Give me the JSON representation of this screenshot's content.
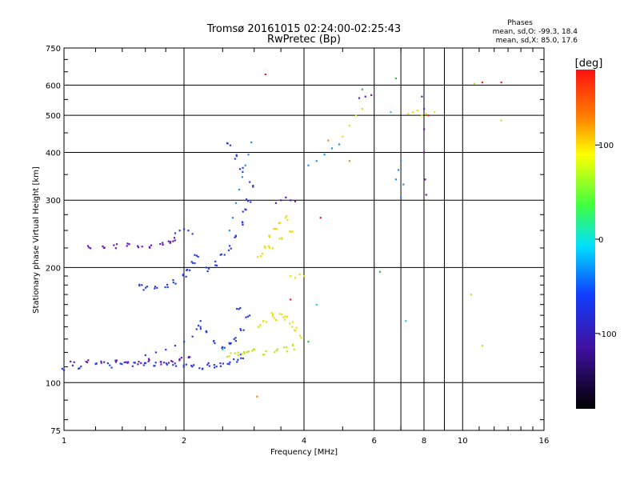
{
  "chart_data": {
    "type": "scatter",
    "title": "Tromsø 20161015 02:24:00-02:25:43",
    "subtitle": "RwPretec (Bp)",
    "xlabel": "Frequency [MHz]",
    "ylabel": "Stationary phase Virtual Height [km]",
    "x_scale": "log",
    "y_scale": "log",
    "xlim": [
      1,
      16
    ],
    "ylim": [
      75,
      750
    ],
    "x_ticks": [
      1,
      2,
      4,
      6,
      8,
      10,
      16
    ],
    "y_ticks": [
      75,
      100,
      200,
      300,
      400,
      500,
      600,
      750
    ],
    "grid": true,
    "legend": {
      "position": "top-right",
      "title": "Phases",
      "lines": [
        "mean, sd,O: -99.3, 18.4",
        "mean, sd,X:  85.0, 17.6"
      ]
    },
    "colorbar": {
      "label": "[deg]",
      "ticks": [
        100,
        0,
        -100
      ],
      "range": [
        -180,
        180
      ]
    },
    "colors": {
      "purple": "#6a1bb8",
      "blue": "#2a3fe0",
      "lightblue": "#1f8ff0",
      "cyan": "#22d0e0",
      "green": "#30c040",
      "yellowgreen": "#c8e020",
      "yellow": "#e8e010",
      "orange": "#f08a10",
      "red": "#e82020"
    },
    "clusters": [
      {
        "color": "blue",
        "points": [
          [
            1.0,
            108
          ],
          [
            1.1,
            110
          ],
          [
            1.2,
            111
          ],
          [
            1.3,
            111
          ],
          [
            1.4,
            112
          ],
          [
            1.5,
            112
          ],
          [
            1.6,
            112
          ],
          [
            1.7,
            112
          ],
          [
            1.8,
            112
          ],
          [
            1.9,
            111
          ],
          [
            2.0,
            111
          ],
          [
            2.1,
            110
          ],
          [
            2.2,
            110
          ],
          [
            2.3,
            111
          ],
          [
            2.4,
            111
          ],
          [
            2.5,
            112
          ],
          [
            2.6,
            113
          ],
          [
            2.7,
            114
          ],
          [
            2.8,
            117
          ]
        ]
      },
      {
        "color": "purple",
        "points": [
          [
            1.05,
            112
          ],
          [
            1.15,
            113
          ],
          [
            1.25,
            112
          ],
          [
            1.35,
            113
          ],
          [
            1.45,
            114
          ],
          [
            1.55,
            113
          ],
          [
            1.65,
            114
          ],
          [
            1.75,
            113
          ],
          [
            1.85,
            114
          ],
          [
            1.95,
            116
          ],
          [
            2.05,
            118
          ]
        ]
      },
      {
        "color": "blue",
        "points": [
          [
            1.6,
            118
          ],
          [
            1.7,
            120
          ],
          [
            1.8,
            122
          ],
          [
            1.9,
            125
          ],
          [
            2.0,
            128
          ],
          [
            2.1,
            132
          ],
          [
            2.15,
            138
          ],
          [
            2.2,
            145
          ]
        ]
      },
      {
        "color": "purple",
        "points": [
          [
            1.15,
            225
          ],
          [
            1.25,
            227
          ],
          [
            1.35,
            228
          ],
          [
            1.45,
            228
          ],
          [
            1.55,
            227
          ],
          [
            1.65,
            228
          ],
          [
            1.75,
            230
          ],
          [
            1.85,
            232
          ],
          [
            1.9,
            236
          ]
        ]
      },
      {
        "color": "blue",
        "points": [
          [
            1.9,
            246
          ],
          [
            1.95,
            250
          ],
          [
            2.0,
            252
          ],
          [
            2.05,
            250
          ],
          [
            2.1,
            245
          ]
        ]
      },
      {
        "color": "blue",
        "points": [
          [
            1.55,
            178
          ],
          [
            1.6,
            176
          ],
          [
            1.7,
            177
          ],
          [
            1.8,
            180
          ],
          [
            1.9,
            184
          ],
          [
            2.0,
            190
          ],
          [
            2.05,
            198
          ],
          [
            2.1,
            206
          ],
          [
            2.15,
            215
          ]
        ]
      },
      {
        "color": "blue",
        "points": [
          [
            2.3,
            198
          ],
          [
            2.4,
            205
          ],
          [
            2.5,
            215
          ],
          [
            2.6,
            225
          ],
          [
            2.7,
            240
          ],
          [
            2.8,
            260
          ],
          [
            2.85,
            280
          ],
          [
            2.9,
            300
          ],
          [
            2.95,
            330
          ],
          [
            2.8,
            360
          ],
          [
            2.7,
            390
          ],
          [
            2.6,
            420
          ]
        ]
      },
      {
        "color": "lightblue",
        "points": [
          [
            2.6,
            250
          ],
          [
            2.65,
            270
          ],
          [
            2.7,
            295
          ],
          [
            2.75,
            320
          ],
          [
            2.8,
            345
          ],
          [
            2.85,
            370
          ],
          [
            2.9,
            395
          ],
          [
            2.95,
            425
          ]
        ]
      },
      {
        "color": "blue",
        "points": [
          [
            2.2,
            140
          ],
          [
            2.3,
            135
          ],
          [
            2.4,
            128
          ],
          [
            2.5,
            124
          ],
          [
            2.6,
            126
          ],
          [
            2.7,
            130
          ],
          [
            2.8,
            138
          ],
          [
            2.9,
            148
          ],
          [
            2.75,
            156
          ]
        ]
      },
      {
        "color": "yellowgreen",
        "points": [
          [
            2.6,
            118
          ],
          [
            2.7,
            119
          ],
          [
            2.8,
            120
          ],
          [
            2.9,
            121
          ],
          [
            3.0,
            121
          ],
          [
            3.2,
            120
          ],
          [
            3.4,
            121
          ],
          [
            3.6,
            122
          ],
          [
            3.8,
            124
          ]
        ]
      },
      {
        "color": "yellow",
        "points": [
          [
            3.1,
            140
          ],
          [
            3.2,
            145
          ],
          [
            3.3,
            150
          ],
          [
            3.4,
            147
          ],
          [
            3.5,
            150
          ],
          [
            3.6,
            148
          ],
          [
            3.7,
            142
          ],
          [
            3.8,
            138
          ],
          [
            3.9,
            132
          ]
        ]
      },
      {
        "color": "yellow",
        "points": [
          [
            3.1,
            215
          ],
          [
            3.2,
            225
          ],
          [
            3.3,
            240
          ],
          [
            3.4,
            250
          ],
          [
            3.5,
            262
          ],
          [
            3.6,
            270
          ],
          [
            3.3,
            225
          ],
          [
            3.5,
            240
          ],
          [
            3.7,
            250
          ]
        ]
      },
      {
        "color": "purple",
        "points": [
          [
            3.4,
            295
          ],
          [
            3.5,
            300
          ],
          [
            3.6,
            305
          ],
          [
            3.7,
            300
          ],
          [
            3.8,
            298
          ]
        ]
      },
      {
        "color": "yellow",
        "points": [
          [
            3.7,
            190
          ],
          [
            3.8,
            188
          ],
          [
            3.9,
            192
          ],
          [
            4.0,
            190
          ]
        ]
      },
      {
        "color": "lightblue",
        "points": [
          [
            4.1,
            370
          ],
          [
            4.3,
            380
          ],
          [
            4.5,
            395
          ],
          [
            4.7,
            410
          ],
          [
            4.9,
            420
          ]
        ]
      },
      {
        "color": "yellow",
        "points": [
          [
            5.0,
            440
          ],
          [
            5.2,
            470
          ],
          [
            5.4,
            500
          ],
          [
            5.6,
            520
          ]
        ]
      },
      {
        "color": "purple",
        "points": [
          [
            5.5,
            555
          ],
          [
            5.7,
            560
          ],
          [
            5.9,
            565
          ]
        ]
      },
      {
        "color": "lightblue",
        "points": [
          [
            6.8,
            340
          ],
          [
            6.9,
            360
          ],
          [
            7.0,
            380
          ],
          [
            7.1,
            330
          ],
          [
            7.0,
            305
          ]
        ]
      },
      {
        "color": "yellow",
        "points": [
          [
            7.3,
            505
          ],
          [
            7.5,
            510
          ],
          [
            7.7,
            515
          ],
          [
            7.9,
            500
          ],
          [
            8.1,
            505
          ],
          [
            8.5,
            510
          ]
        ]
      },
      {
        "color": "purple",
        "points": [
          [
            7.9,
            560
          ],
          [
            8.0,
            520
          ],
          [
            8.0,
            460
          ],
          [
            8.0,
            400
          ],
          [
            8.05,
            340
          ],
          [
            8.1,
            310
          ]
        ]
      },
      {
        "color": "red",
        "points": [
          [
            3.2,
            640
          ],
          [
            8.2,
            500
          ],
          [
            11.2,
            610
          ],
          [
            12.5,
            610
          ],
          [
            3.7,
            165
          ],
          [
            4.4,
            270
          ]
        ]
      },
      {
        "color": "green",
        "points": [
          [
            6.8,
            625
          ],
          [
            5.6,
            585
          ],
          [
            6.2,
            195
          ],
          [
            4.1,
            128
          ]
        ]
      },
      {
        "color": "cyan",
        "points": [
          [
            2.5,
            122
          ],
          [
            4.3,
            160
          ],
          [
            7.2,
            145
          ],
          [
            6.6,
            510
          ]
        ]
      },
      {
        "color": "orange",
        "points": [
          [
            4.6,
            430
          ],
          [
            5.2,
            380
          ],
          [
            3.05,
            92
          ]
        ]
      },
      {
        "color": "yellowgreen",
        "points": [
          [
            10.5,
            170
          ],
          [
            11.2,
            125
          ],
          [
            12.5,
            485
          ],
          [
            10.7,
            605
          ]
        ]
      }
    ]
  }
}
